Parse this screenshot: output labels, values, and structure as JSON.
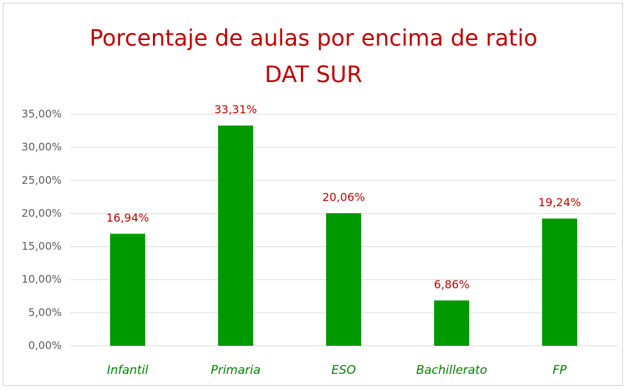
{
  "chart_data": {
    "type": "bar",
    "title": "Porcentaje de aulas por encima de ratio DAT SUR",
    "categories": [
      "Infantil",
      "Primaria",
      "ESO",
      "Bachillerato",
      "FP"
    ],
    "values": [
      16.94,
      33.31,
      20.06,
      6.86,
      19.24
    ],
    "value_labels": [
      "16,94%",
      "33,31%",
      "20,06%",
      "6,86%",
      "19,24%"
    ],
    "color": "#009900",
    "ylim": [
      0,
      35
    ],
    "yticks": [
      {
        "value": 0,
        "label": "0,00%"
      },
      {
        "value": 5,
        "label": "5,00%"
      },
      {
        "value": 10,
        "label": "10,00%"
      },
      {
        "value": 15,
        "label": "15,00%"
      },
      {
        "value": 20,
        "label": "20,00%"
      },
      {
        "value": 25,
        "label": "25,00%"
      },
      {
        "value": 30,
        "label": "30,00%"
      },
      {
        "value": 35,
        "label": "35,00%"
      }
    ],
    "grid": true
  }
}
